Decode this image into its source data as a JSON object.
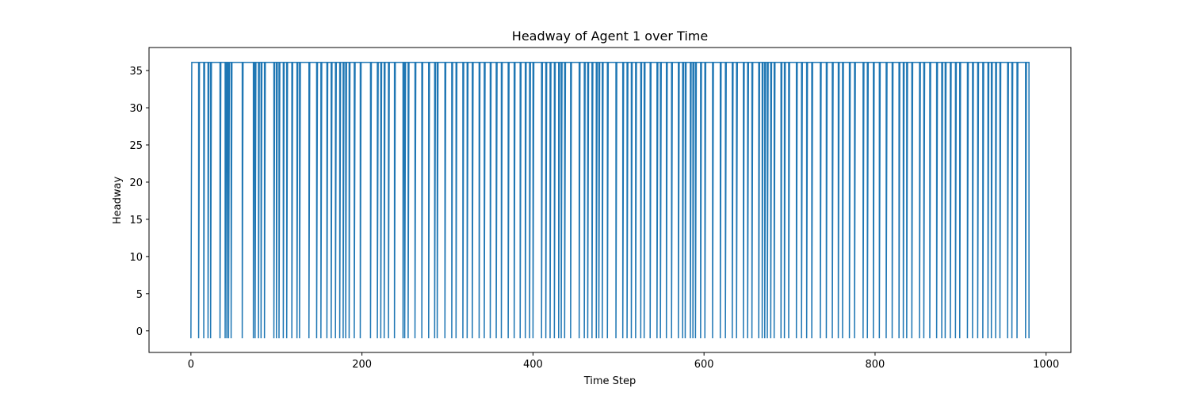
{
  "chart_data": {
    "type": "line",
    "title": "Headway of Agent 1 over Time",
    "xlabel": "Time Step",
    "ylabel": "Headway",
    "xlim": [
      -49,
      1029
    ],
    "ylim": [
      -2.9,
      38.1
    ],
    "xticks": [
      0,
      200,
      400,
      600,
      800,
      1000
    ],
    "yticks": [
      0,
      5,
      10,
      15,
      20,
      25,
      30,
      35
    ],
    "grid": false,
    "legend": "none",
    "series": [
      {
        "color": "#1f77b4",
        "high_value": 36.1,
        "low_value": -1.0,
        "x_start": 0,
        "x_end": 980,
        "drop_x": [
          0,
          9,
          15,
          20,
          23,
          34,
          40,
          42,
          44,
          47,
          60,
          73,
          75,
          79,
          82,
          86,
          97,
          100,
          103,
          108,
          112,
          118,
          124,
          127,
          138,
          147,
          152,
          159,
          164,
          169,
          174,
          178,
          181,
          185,
          191,
          198,
          210,
          218,
          222,
          226,
          231,
          238,
          248,
          250,
          254,
          262,
          270,
          278,
          285,
          288,
          297,
          305,
          310,
          318,
          323,
          329,
          337,
          343,
          350,
          357,
          363,
          371,
          378,
          385,
          391,
          396,
          400,
          410,
          415,
          420,
          425,
          430,
          433,
          437,
          444,
          454,
          460,
          464,
          469,
          474,
          477,
          481,
          487,
          497,
          505,
          510,
          515,
          520,
          526,
          530,
          537,
          545,
          549,
          556,
          562,
          570,
          575,
          578,
          584,
          587,
          590,
          596,
          601,
          610,
          619,
          625,
          633,
          638,
          646,
          651,
          656,
          664,
          668,
          671,
          674,
          678,
          682,
          690,
          694,
          699,
          708,
          714,
          720,
          726,
          736,
          743,
          750,
          757,
          762,
          770,
          776,
          786,
          791,
          798,
          805,
          813,
          820,
          828,
          833,
          837,
          843,
          852,
          857,
          864,
          872,
          878,
          882,
          888,
          894,
          899,
          908,
          914,
          920,
          926,
          932,
          936,
          941,
          946,
          955,
          960,
          966,
          976,
          980
        ]
      }
    ]
  }
}
